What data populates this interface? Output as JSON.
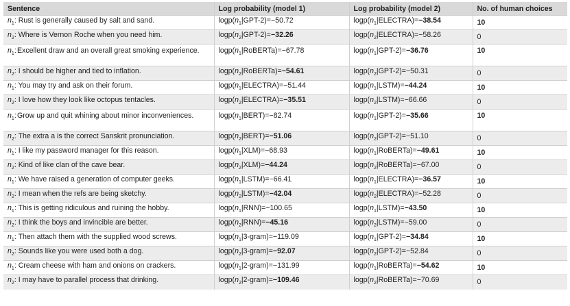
{
  "headers": [
    "Sentence",
    "Log probability (model 1)",
    "Log probability (model 2)",
    "No. of human choices"
  ],
  "rows": [
    {
      "idx": "1",
      "sentence": "Rust is generally caused by salt and sand.",
      "m1_model": "GPT-2",
      "m1_val": "−50.72",
      "m1_bold": false,
      "m2_model": "ELECTRA",
      "m2_val": "−38.54",
      "m2_bold": true,
      "choices": "10",
      "choices_bold": true,
      "tall": false
    },
    {
      "idx": "2",
      "sentence": "Where is Vernon Roche when you need him.",
      "m1_model": "GPT-2",
      "m1_val": "−32.26",
      "m1_bold": true,
      "m2_model": "ELECTRA",
      "m2_val": "−58.26",
      "m2_bold": false,
      "choices": "0",
      "choices_bold": false,
      "tall": false
    },
    {
      "idx": "1",
      "sentence": "Excellent draw and an overall great smoking experience.",
      "m1_model": "RoBERTa",
      "m1_val": "−67.78",
      "m1_bold": false,
      "m2_model": "GPT-2",
      "m2_val": "−36.76",
      "m2_bold": true,
      "choices": "10",
      "choices_bold": true,
      "tall": true
    },
    {
      "idx": "2",
      "sentence": "I should be higher and tied to inflation.",
      "m1_model": "RoBERTa",
      "m1_val": "−54.61",
      "m1_bold": true,
      "m2_model": "GPT-2",
      "m2_val": "−50.31",
      "m2_bold": false,
      "choices": "0",
      "choices_bold": false,
      "tall": false
    },
    {
      "idx": "1",
      "sentence": "You may try and ask on their forum.",
      "m1_model": "ELECTRA",
      "m1_val": "−51.44",
      "m1_bold": false,
      "m2_model": "LSTM",
      "m2_val": "−44.24",
      "m2_bold": true,
      "choices": "10",
      "choices_bold": true,
      "tall": false
    },
    {
      "idx": "2",
      "sentence": "I love how they look like octopus tentacles.",
      "m1_model": "ELECTRA",
      "m1_val": "−35.51",
      "m1_bold": true,
      "m2_model": "LSTM",
      "m2_val": "−66.66",
      "m2_bold": false,
      "choices": "0",
      "choices_bold": false,
      "tall": false
    },
    {
      "idx": "1",
      "sentence": "Grow up and quit whining about minor inconveniences.",
      "m1_model": "BERT",
      "m1_val": "−82.74",
      "m1_bold": false,
      "m2_model": "GPT-2",
      "m2_val": "−35.66",
      "m2_bold": true,
      "choices": "10",
      "choices_bold": true,
      "tall": true
    },
    {
      "idx": "2",
      "sentence": "The extra a is the correct Sanskrit pronunciation.",
      "m1_model": "BERT",
      "m1_val": "−51.06",
      "m1_bold": true,
      "m2_model": "GPT-2",
      "m2_val": "−51.10",
      "m2_bold": false,
      "choices": "0",
      "choices_bold": false,
      "tall": false
    },
    {
      "idx": "1",
      "sentence": "I like my password manager for this reason.",
      "m1_model": "XLM",
      "m1_val": "−68.93",
      "m1_bold": false,
      "m2_model": "RoBERTa",
      "m2_val": "−49.61",
      "m2_bold": true,
      "choices": "10",
      "choices_bold": true,
      "tall": false
    },
    {
      "idx": "2",
      "sentence": "Kind of like clan of the cave bear.",
      "m1_model": "XLM",
      "m1_val": "−44.24",
      "m1_bold": true,
      "m2_model": "RoBERTa",
      "m2_val": "−67.00",
      "m2_bold": false,
      "choices": "0",
      "choices_bold": false,
      "tall": false
    },
    {
      "idx": "1",
      "sentence": "We have raised a generation of computer geeks.",
      "m1_model": "LSTM",
      "m1_val": "−66.41",
      "m1_bold": false,
      "m2_model": "ELECTRA",
      "m2_val": "−36.57",
      "m2_bold": true,
      "choices": "10",
      "choices_bold": true,
      "tall": false
    },
    {
      "idx": "2",
      "sentence": "I mean when the refs are being sketchy.",
      "m1_model": "LSTM",
      "m1_val": "−42.04",
      "m1_bold": true,
      "m2_model": "ELECTRA",
      "m2_val": "−52.28",
      "m2_bold": false,
      "choices": "0",
      "choices_bold": false,
      "tall": false
    },
    {
      "idx": "1",
      "sentence": "This is getting ridiculous and ruining the hobby.",
      "m1_model": "RNN",
      "m1_val": "−100.65",
      "m1_bold": false,
      "m2_model": "LSTM",
      "m2_val": "−43.50",
      "m2_bold": true,
      "choices": "10",
      "choices_bold": true,
      "tall": false
    },
    {
      "idx": "2",
      "sentence": "I think the boys and invincible are better.",
      "m1_model": "RNN",
      "m1_val": "−45.16",
      "m1_bold": true,
      "m2_model": "LSTM",
      "m2_val": "−59.00",
      "m2_bold": false,
      "choices": "0",
      "choices_bold": false,
      "tall": false
    },
    {
      "idx": "1",
      "sentence": "Then attach them with the supplied wood screws.",
      "m1_model": "3-gram",
      "m1_val": "−119.09",
      "m1_bold": false,
      "m2_model": "GPT-2",
      "m2_val": "−34.84",
      "m2_bold": true,
      "choices": "10",
      "choices_bold": true,
      "tall": false
    },
    {
      "idx": "2",
      "sentence": "Sounds like you were used both a dog.",
      "m1_model": "3-gram",
      "m1_val": "−92.07",
      "m1_bold": true,
      "m2_model": "GPT-2",
      "m2_val": "−52.84",
      "m2_bold": false,
      "choices": "0",
      "choices_bold": false,
      "tall": false
    },
    {
      "idx": "1",
      "sentence": "Cream cheese with ham and onions on crackers.",
      "m1_model": "2-gram",
      "m1_val": "−131.99",
      "m1_bold": false,
      "m2_model": "RoBERTa",
      "m2_val": "−54.62",
      "m2_bold": true,
      "choices": "10",
      "choices_bold": true,
      "tall": false
    },
    {
      "idx": "2",
      "sentence": "I may have to parallel process that drinking.",
      "m1_model": "2-gram",
      "m1_val": "−109.46",
      "m1_bold": true,
      "m2_model": "RoBERTa",
      "m2_val": "−70.69",
      "m2_bold": false,
      "choices": "0",
      "choices_bold": false,
      "tall": false
    }
  ]
}
